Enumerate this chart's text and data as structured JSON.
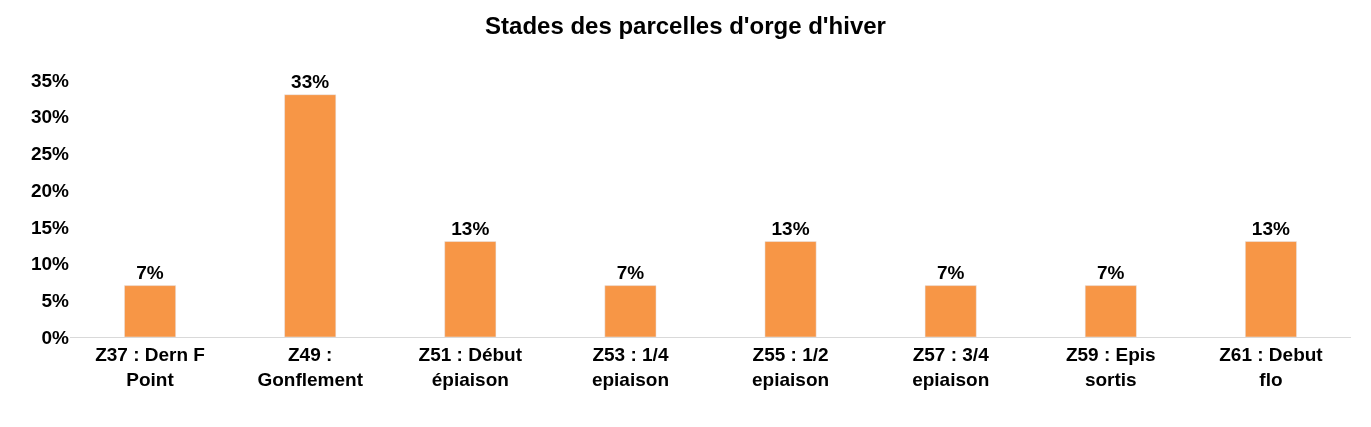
{
  "chart_data": {
    "type": "bar",
    "title": "Stades des parcelles d'orge d'hiver",
    "categories": [
      "Z37 : Dern F Point",
      "Z49 : Gonflement",
      "Z51 : Début épiaison",
      "Z53 : 1/4 epiaison",
      "Z55 : 1/2 epiaison",
      "Z57 : 3/4 epiaison",
      "Z59 : Epis sortis",
      "Z61 : Debut flo"
    ],
    "values": [
      7,
      33,
      13,
      7,
      13,
      7,
      7,
      13
    ],
    "value_labels": [
      "7%",
      "33%",
      "13%",
      "7%",
      "13%",
      "7%",
      "7%",
      "13%"
    ],
    "color": "#f79646",
    "ylim": [
      0,
      35
    ],
    "yticks": [
      {
        "value": 0,
        "label": "0%"
      },
      {
        "value": 5,
        "label": "5%"
      },
      {
        "value": 10,
        "label": "10%"
      },
      {
        "value": 15,
        "label": "15%"
      },
      {
        "value": 20,
        "label": "20%"
      },
      {
        "value": 25,
        "label": "25%"
      },
      {
        "value": 30,
        "label": "30%"
      },
      {
        "value": 35,
        "label": "35%"
      }
    ],
    "legend": false
  }
}
